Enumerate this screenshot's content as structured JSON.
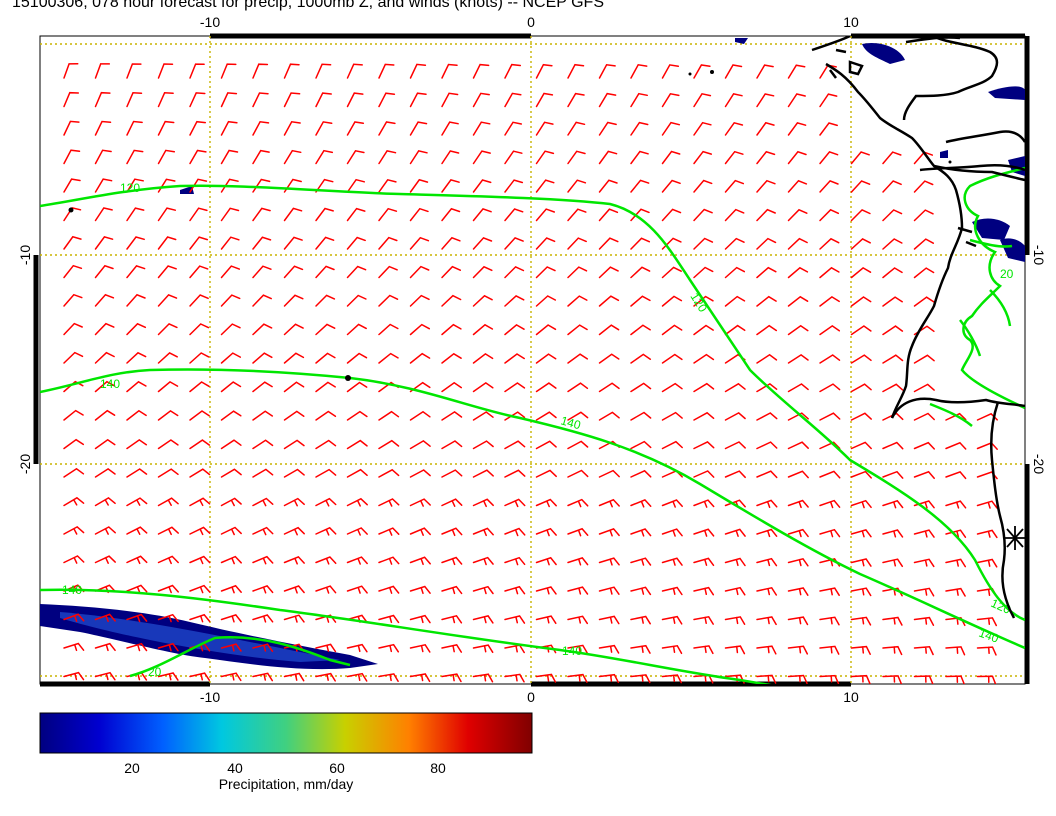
{
  "title": "15100306, 078 hour forecast for precip, 1000mb Z, and winds (knots) -- NCEP GFS",
  "colors": {
    "wind_barbs": "#ff0000",
    "contours": "#00e600",
    "coastline": "#000000",
    "grid": "#c8b400",
    "precip_dark": "#000080",
    "precip_mid": "#1e46c8",
    "marker": "#000000"
  },
  "map": {
    "lon_range": [
      -15,
      15
    ],
    "lat_range": [
      -30,
      0
    ],
    "top_ticks": [
      "-10",
      "0",
      "10"
    ],
    "bottom_ticks": [
      "-10",
      "0",
      "10"
    ],
    "left_ticks": [
      "-10",
      "-20"
    ],
    "right_ticks": [
      "-10",
      "-20"
    ],
    "gridlines": "dotted",
    "wind_barbs": "red, southerly/southeasterly flow",
    "contour_labels": [
      "120",
      "120",
      "140",
      "140",
      "140",
      "140",
      "120",
      "140",
      "20",
      "20"
    ],
    "point_marker_icon": "asterisk-icon"
  },
  "colorbar": {
    "ticks": [
      "20",
      "40",
      "60",
      "80"
    ],
    "label": "Precipitation, mm/day",
    "range": [
      0,
      100
    ]
  }
}
